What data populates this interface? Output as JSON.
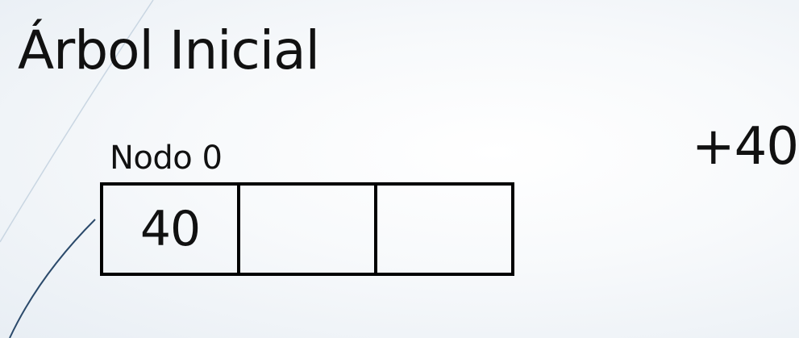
{
  "title": "Árbol Inicial",
  "node": {
    "label": "Nodo 0",
    "cells": [
      "40",
      "",
      ""
    ]
  },
  "operation": "+40",
  "colors": {
    "background_center": "#ffffff",
    "background_edge": "#e8eef4",
    "decor_line_light": "#c9d6e2",
    "decor_line_dark": "#2b4a6b",
    "ink": "#000000"
  }
}
